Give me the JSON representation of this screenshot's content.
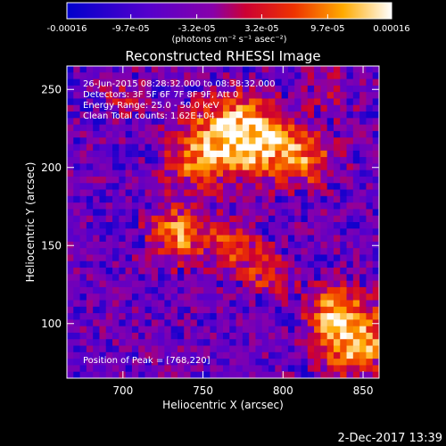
{
  "chart_data": {
    "type": "heatmap",
    "title": "Reconstructed RHESSI Image",
    "xlabel": "Heliocentric X (arcsec)",
    "ylabel": "Heliocentric Y (arcsec)",
    "xlim": [
      665,
      860
    ],
    "ylim": [
      65,
      265
    ],
    "x_ticks": [
      700,
      750,
      800,
      850
    ],
    "y_ticks": [
      100,
      150,
      200,
      250
    ],
    "colorbar": {
      "unit_label": "(photons cm⁻² s⁻¹ asec⁻²)",
      "range": [
        -0.00016,
        0.00016
      ],
      "tick_values": [
        -0.00016,
        -9.7e-05,
        -3.2e-05,
        3.2e-05,
        9.7e-05,
        0.00016
      ],
      "tick_labels": [
        "-0.00016",
        "-9.7e-05",
        "-3.2e-05",
        "3.2e-05",
        "9.7e-05",
        "0.00016"
      ]
    },
    "annotations": [
      "26-Jun-2015 08:28:32.000 to 08:38:32.000",
      "Detectors: 3F 5F 6F 7F 8F 9F, Att 0",
      "Energy Range: 25.0 - 50.0 keV",
      "Clean      Total counts: 1.62E+04"
    ],
    "peak_label": "Position of Peak = [768,220]",
    "peak": [
      768,
      220
    ],
    "sources": [
      {
        "x": 768,
        "y": 222,
        "amplitude": 1.0,
        "sigma": 16
      },
      {
        "x": 788,
        "y": 215,
        "amplitude": 0.75,
        "sigma": 14
      },
      {
        "x": 745,
        "y": 205,
        "amplitude": 0.6,
        "sigma": 13
      },
      {
        "x": 815,
        "y": 205,
        "amplitude": 0.65,
        "sigma": 12
      },
      {
        "x": 735,
        "y": 158,
        "amplitude": 0.75,
        "sigma": 13
      },
      {
        "x": 770,
        "y": 150,
        "amplitude": 0.55,
        "sigma": 11
      },
      {
        "x": 790,
        "y": 132,
        "amplitude": 0.5,
        "sigma": 10
      },
      {
        "x": 845,
        "y": 90,
        "amplitude": 0.95,
        "sigma": 16
      },
      {
        "x": 830,
        "y": 110,
        "amplitude": 0.5,
        "sigma": 12
      },
      {
        "x": 700,
        "y": 245,
        "amplitude": 0.3,
        "sigma": 10
      },
      {
        "x": 830,
        "y": 250,
        "amplitude": 0.3,
        "sigma": 10
      }
    ]
  },
  "footer": {
    "timestamp": "2-Dec-2017 13:39"
  }
}
